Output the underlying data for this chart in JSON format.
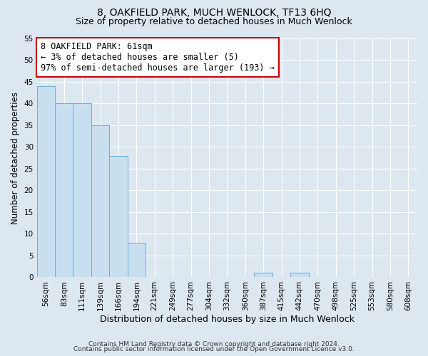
{
  "title": "8, OAKFIELD PARK, MUCH WENLOCK, TF13 6HQ",
  "subtitle": "Size of property relative to detached houses in Much Wenlock",
  "xlabel": "Distribution of detached houses by size in Much Wenlock",
  "ylabel": "Number of detached properties",
  "bar_color": "#c8dff0",
  "bar_edge_color": "#6aaed6",
  "background_color": "#dde7f0",
  "plot_bg_color": "#dde7f0",
  "categories": [
    "56sqm",
    "83sqm",
    "111sqm",
    "139sqm",
    "166sqm",
    "194sqm",
    "221sqm",
    "249sqm",
    "277sqm",
    "304sqm",
    "332sqm",
    "360sqm",
    "387sqm",
    "415sqm",
    "442sqm",
    "470sqm",
    "498sqm",
    "525sqm",
    "553sqm",
    "580sqm",
    "608sqm"
  ],
  "values": [
    44,
    40,
    40,
    35,
    28,
    8,
    0,
    0,
    0,
    0,
    0,
    0,
    1,
    0,
    1,
    0,
    0,
    0,
    0,
    0,
    0
  ],
  "ylim": [
    0,
    55
  ],
  "yticks": [
    0,
    5,
    10,
    15,
    20,
    25,
    30,
    35,
    40,
    45,
    50,
    55
  ],
  "annotation_box_text": "8 OAKFIELD PARK: 61sqm\n← 3% of detached houses are smaller (5)\n97% of semi-detached houses are larger (193) →",
  "annotation_box_color": "#ffffff",
  "annotation_box_edge_color": "#cc0000",
  "footer_line1": "Contains HM Land Registry data © Crown copyright and database right 2024.",
  "footer_line2": "Contains public sector information licensed under the Open Government Licence v3.0.",
  "title_fontsize": 10,
  "subtitle_fontsize": 9,
  "xlabel_fontsize": 9,
  "ylabel_fontsize": 8.5,
  "tick_fontsize": 7.5,
  "annotation_fontsize": 8.5,
  "footer_fontsize": 6.5
}
